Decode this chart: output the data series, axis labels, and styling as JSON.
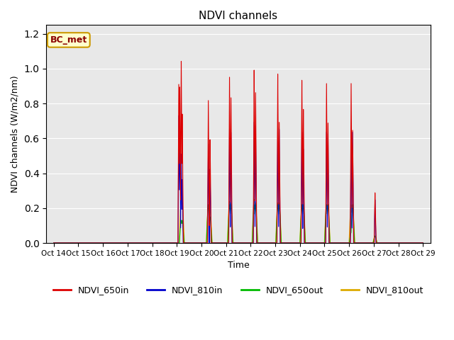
{
  "title": "NDVI channels",
  "xlabel": "Time",
  "ylabel": "NDVI channels (W/m2/nm)",
  "ylim": [
    0,
    1.25
  ],
  "annotation": "BC_met",
  "legend": [
    "NDVI_650in",
    "NDVI_810in",
    "NDVI_650out",
    "NDVI_810out"
  ],
  "colors": [
    "#dd0000",
    "#0000cc",
    "#00bb00",
    "#ddaa00"
  ],
  "bg_color": "#e8e8e8",
  "xtick_labels": [
    "Oct 14",
    "Oct 15",
    "Oct 16",
    "Oct 17",
    "Oct 18",
    "Oct 19",
    "Oct 20",
    "Oct 21",
    "Oct 22",
    "Oct 23",
    "Oct 24",
    "Oct 25",
    "Oct 26",
    "Oct 27",
    "Oct 28",
    "Oct 29"
  ],
  "xtick_positions": [
    0,
    1,
    2,
    3,
    4,
    5,
    6,
    7,
    8,
    9,
    10,
    11,
    12,
    13,
    14,
    15
  ],
  "spike_events": [
    {
      "day": 5.08,
      "r": 0.91,
      "b": 0.73,
      "g": 0.0,
      "o": 0.0
    },
    {
      "day": 5.12,
      "r": 0.91,
      "b": 0.73,
      "g": 0.0,
      "o": 0.0
    },
    {
      "day": 5.18,
      "r": 1.06,
      "b": 0.52,
      "g": 0.13,
      "o": 0.26
    },
    {
      "day": 5.22,
      "r": 0.75,
      "b": 0.37,
      "g": 0.13,
      "o": 0.23
    },
    {
      "day": 6.28,
      "r": 0.82,
      "b": 0.57,
      "g": 0.22,
      "o": 0.22
    },
    {
      "day": 6.35,
      "r": 0.6,
      "b": 0.43,
      "g": 0.15,
      "o": 0.19
    },
    {
      "day": 7.14,
      "r": 0.97,
      "b": 0.67,
      "g": 0.22,
      "o": 0.24
    },
    {
      "day": 7.2,
      "r": 0.85,
      "b": 0.65,
      "g": 0.22,
      "o": 0.23
    },
    {
      "day": 8.14,
      "r": 1.0,
      "b": 0.7,
      "g": 0.22,
      "o": 0.25
    },
    {
      "day": 8.2,
      "r": 0.87,
      "b": 0.68,
      "g": 0.22,
      "o": 0.23
    },
    {
      "day": 9.1,
      "r": 0.98,
      "b": 0.67,
      "g": 0.22,
      "o": 0.23
    },
    {
      "day": 9.16,
      "r": 0.7,
      "b": 0.66,
      "g": 0.22,
      "o": 0.23
    },
    {
      "day": 10.08,
      "r": 0.95,
      "b": 0.65,
      "g": 0.22,
      "o": 0.22
    },
    {
      "day": 10.14,
      "r": 0.78,
      "b": 0.55,
      "g": 0.22,
      "o": 0.22
    },
    {
      "day": 11.08,
      "r": 0.93,
      "b": 0.65,
      "g": 0.22,
      "o": 0.22
    },
    {
      "day": 11.14,
      "r": 0.7,
      "b": 0.64,
      "g": 0.22,
      "o": 0.22
    },
    {
      "day": 12.08,
      "r": 0.92,
      "b": 0.65,
      "g": 0.06,
      "o": 0.22
    },
    {
      "day": 12.14,
      "r": 0.65,
      "b": 0.64,
      "g": 0.22,
      "o": 0.22
    },
    {
      "day": 13.05,
      "r": 0.29,
      "b": 0.25,
      "g": 0.04,
      "o": 0.04
    }
  ]
}
